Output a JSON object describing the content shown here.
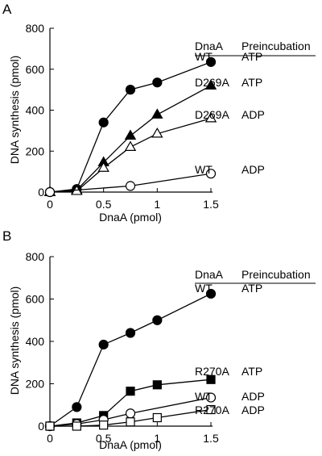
{
  "chart_data": [
    {
      "type": "line",
      "panel_label": "A",
      "xlabel": "DnaA (pmol)",
      "ylabel": "DNA synthesis (pmol)",
      "xlim": [
        0,
        1.5
      ],
      "ylim": [
        0,
        800
      ],
      "x_ticks": [
        "0",
        "0.5",
        "1",
        "1.5"
      ],
      "y_ticks": [
        "0",
        "200",
        "400",
        "600",
        "800"
      ],
      "grid": false,
      "legend_header": [
        "DnaA",
        "Preincubation"
      ],
      "series": [
        {
          "label_dnaa": "WT",
          "label_pre": "ATP",
          "marker": "circle",
          "filled": true,
          "x": [
            0,
            0.25,
            0.5,
            0.75,
            1.0,
            1.5
          ],
          "y": [
            0,
            15,
            340,
            500,
            535,
            635
          ]
        },
        {
          "label_dnaa": "D269A",
          "label_pre": "ATP",
          "marker": "triangle",
          "filled": true,
          "x": [
            0,
            0.25,
            0.5,
            0.75,
            1.0,
            1.5
          ],
          "y": [
            0,
            10,
            145,
            275,
            378,
            520
          ]
        },
        {
          "label_dnaa": "D269A",
          "label_pre": "ADP",
          "marker": "triangle",
          "filled": false,
          "x": [
            0,
            0.25,
            0.5,
            0.75,
            1.0,
            1.5
          ],
          "y": [
            0,
            5,
            118,
            220,
            285,
            360
          ]
        },
        {
          "label_dnaa": "WT",
          "label_pre": "ADP",
          "marker": "circle",
          "filled": false,
          "x": [
            0,
            0.75,
            1.5
          ],
          "y": [
            0,
            30,
            90
          ]
        }
      ]
    },
    {
      "type": "line",
      "panel_label": "B",
      "xlabel": "DnaA (pmol)",
      "ylabel": "DNA synthesis (pmol)",
      "xlim": [
        0,
        1.5
      ],
      "ylim": [
        0,
        800
      ],
      "x_ticks": [
        "0",
        "0.5",
        "1",
        "1.5"
      ],
      "y_ticks": [
        "0",
        "200",
        "400",
        "600",
        "800"
      ],
      "grid": false,
      "legend_header": [
        "DnaA",
        "Preincubation"
      ],
      "series": [
        {
          "label_dnaa": "WT",
          "label_pre": "ATP",
          "marker": "circle",
          "filled": true,
          "x": [
            0,
            0.25,
            0.5,
            0.75,
            1.0,
            1.5
          ],
          "y": [
            0,
            90,
            385,
            440,
            500,
            625
          ]
        },
        {
          "label_dnaa": "R270A",
          "label_pre": "ATP",
          "marker": "square",
          "filled": true,
          "x": [
            0,
            0.25,
            0.5,
            0.75,
            1.0,
            1.5
          ],
          "y": [
            0,
            15,
            50,
            165,
            195,
            220
          ]
        },
        {
          "label_dnaa": "WT",
          "label_pre": "ADP",
          "marker": "circle",
          "filled": false,
          "x": [
            0,
            0.25,
            0.5,
            0.75,
            1.5
          ],
          "y": [
            0,
            10,
            30,
            60,
            135
          ]
        },
        {
          "label_dnaa": "R270A",
          "label_pre": "ADP",
          "marker": "square",
          "filled": false,
          "x": [
            0,
            0.25,
            0.5,
            0.75,
            1.0,
            1.5
          ],
          "y": [
            0,
            0,
            5,
            20,
            40,
            78
          ]
        }
      ]
    }
  ]
}
